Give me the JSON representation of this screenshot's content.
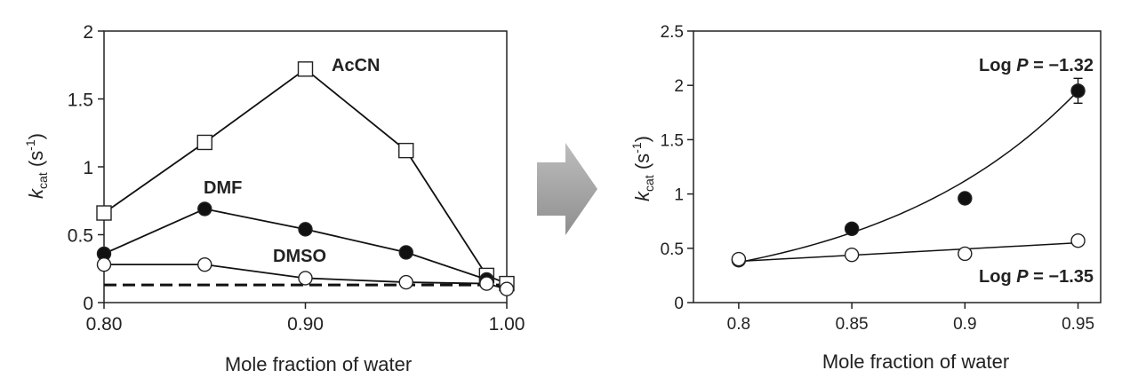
{
  "chart_data": [
    {
      "type": "line",
      "xlabel": "Mole fraction of water",
      "ylabel_main": "k",
      "ylabel_sub": "cat",
      "ylabel_unit": "(s",
      "ylabel_exp": "-1",
      "ylabel_close": ")",
      "xlim": [
        0.8,
        1.0
      ],
      "ylim": [
        0,
        2
      ],
      "xticks": [
        0.8,
        0.9,
        1.0
      ],
      "xtick_labels": [
        "0.80",
        "0.90",
        "1.00"
      ],
      "yticks": [
        0,
        0.5,
        1,
        1.5,
        2
      ],
      "ytick_labels": [
        "0",
        "0.5",
        "1",
        "1.5",
        "2"
      ],
      "series": [
        {
          "name": "AcCN",
          "marker": "square-open",
          "x": [
            0.8,
            0.85,
            0.9,
            0.95,
            0.99,
            1.0
          ],
          "y": [
            0.66,
            1.18,
            1.72,
            1.12,
            0.2,
            0.14
          ]
        },
        {
          "name": "DMF",
          "marker": "circle-filled",
          "x": [
            0.8,
            0.85,
            0.9,
            0.95,
            0.99
          ],
          "y": [
            0.36,
            0.69,
            0.54,
            0.37,
            0.17
          ]
        },
        {
          "name": "DMSO",
          "marker": "circle-open",
          "x": [
            0.8,
            0.85,
            0.9,
            0.95,
            0.99,
            1.0
          ],
          "y": [
            0.28,
            0.28,
            0.18,
            0.15,
            0.14,
            0.1
          ]
        }
      ],
      "reference_line": {
        "y": 0.13,
        "style": "dashed"
      }
    },
    {
      "type": "scatter",
      "xlabel": "Mole fraction of water",
      "ylabel_main": "k",
      "ylabel_sub": "cat",
      "ylabel_unit": "(s",
      "ylabel_exp": "-1",
      "ylabel_close": ")",
      "xlim": [
        0.78,
        0.96
      ],
      "ylim": [
        0,
        2.5
      ],
      "xticks": [
        0.8,
        0.85,
        0.9,
        0.95
      ],
      "xtick_labels": [
        "0.8",
        "0.85",
        "0.9",
        "0.95"
      ],
      "yticks": [
        0,
        0.5,
        1,
        1.5,
        2,
        2.5
      ],
      "ytick_labels": [
        "0",
        "0.5",
        "1",
        "1.5",
        "2",
        "2.5"
      ],
      "series": [
        {
          "marker": "circle-filled",
          "fit": "exponential",
          "x": [
            0.8,
            0.85,
            0.9,
            0.95
          ],
          "y": [
            0.39,
            0.68,
            0.96,
            1.95
          ],
          "fit_y": [
            0.37,
            0.6,
            1.07,
            1.95
          ]
        },
        {
          "marker": "circle-open",
          "fit": "linear",
          "x": [
            0.8,
            0.85,
            0.9,
            0.95
          ],
          "y": [
            0.4,
            0.44,
            0.45,
            0.57
          ],
          "fit_y": [
            0.38,
            0.44,
            0.5,
            0.55
          ]
        }
      ],
      "annotations": [
        {
          "prefix": "Log ",
          "var": "P",
          "value": " = −1.32"
        },
        {
          "prefix": "Log ",
          "var": "P",
          "value": " = −1.35"
        }
      ]
    }
  ],
  "arrow": {
    "color": "#a6a6a6"
  }
}
